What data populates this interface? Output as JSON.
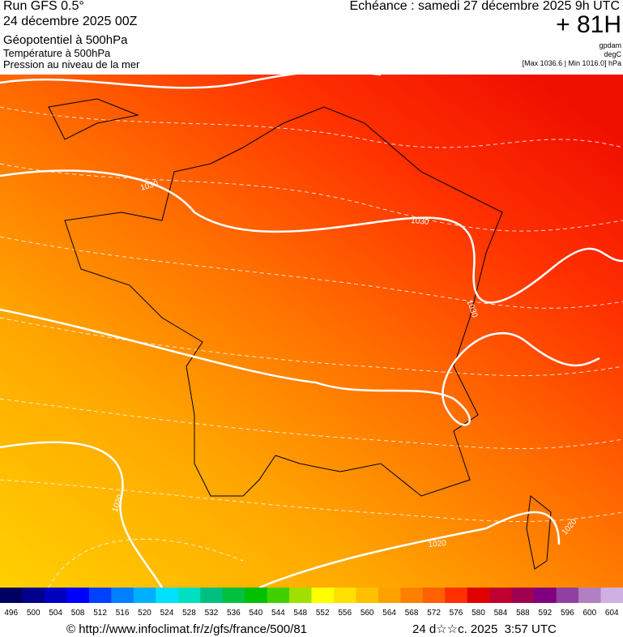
{
  "header": {
    "left": [
      "Run GFS 0.5°",
      "24 décembre 2025 00Z",
      "Géopotentiel à 500hPa",
      "Température à 500hPa",
      "Pression au niveau de la mer"
    ],
    "right": {
      "title": "Echéance : samedi 27 décembre 2025 9h UTC",
      "lead": "+ 81H",
      "units": [
        "gpdam",
        "degC"
      ],
      "range": "[Max 1036.6 | Min 1016.0] hPa"
    }
  },
  "map": {
    "isobar_labels": [
      "1030",
      "1030",
      "1030",
      "1020",
      "1020",
      "1020"
    ]
  },
  "legend": {
    "values": [
      496,
      500,
      504,
      508,
      512,
      516,
      520,
      524,
      528,
      532,
      536,
      540,
      544,
      548,
      552,
      556,
      560,
      564,
      568,
      572,
      576,
      580,
      584,
      588,
      592,
      596,
      600,
      604
    ],
    "colors": [
      "#000060",
      "#00008c",
      "#0000c0",
      "#0000ff",
      "#0040ff",
      "#0080ff",
      "#00b0ff",
      "#00e0ff",
      "#00e0c0",
      "#00c080",
      "#00c040",
      "#00c000",
      "#40d000",
      "#a0e000",
      "#ffff00",
      "#ffe000",
      "#ffc000",
      "#ffa000",
      "#ff8000",
      "#ff6000",
      "#ff3000",
      "#e00000",
      "#c00030",
      "#a00050",
      "#800080",
      "#9040a0",
      "#b080c0",
      "#d0b0e0"
    ]
  },
  "footer": {
    "url": "© http://www.infoclimat.fr/z/gfs/france/500/81",
    "date": "24 d☆☆c. 2025  3:57 UTC"
  }
}
